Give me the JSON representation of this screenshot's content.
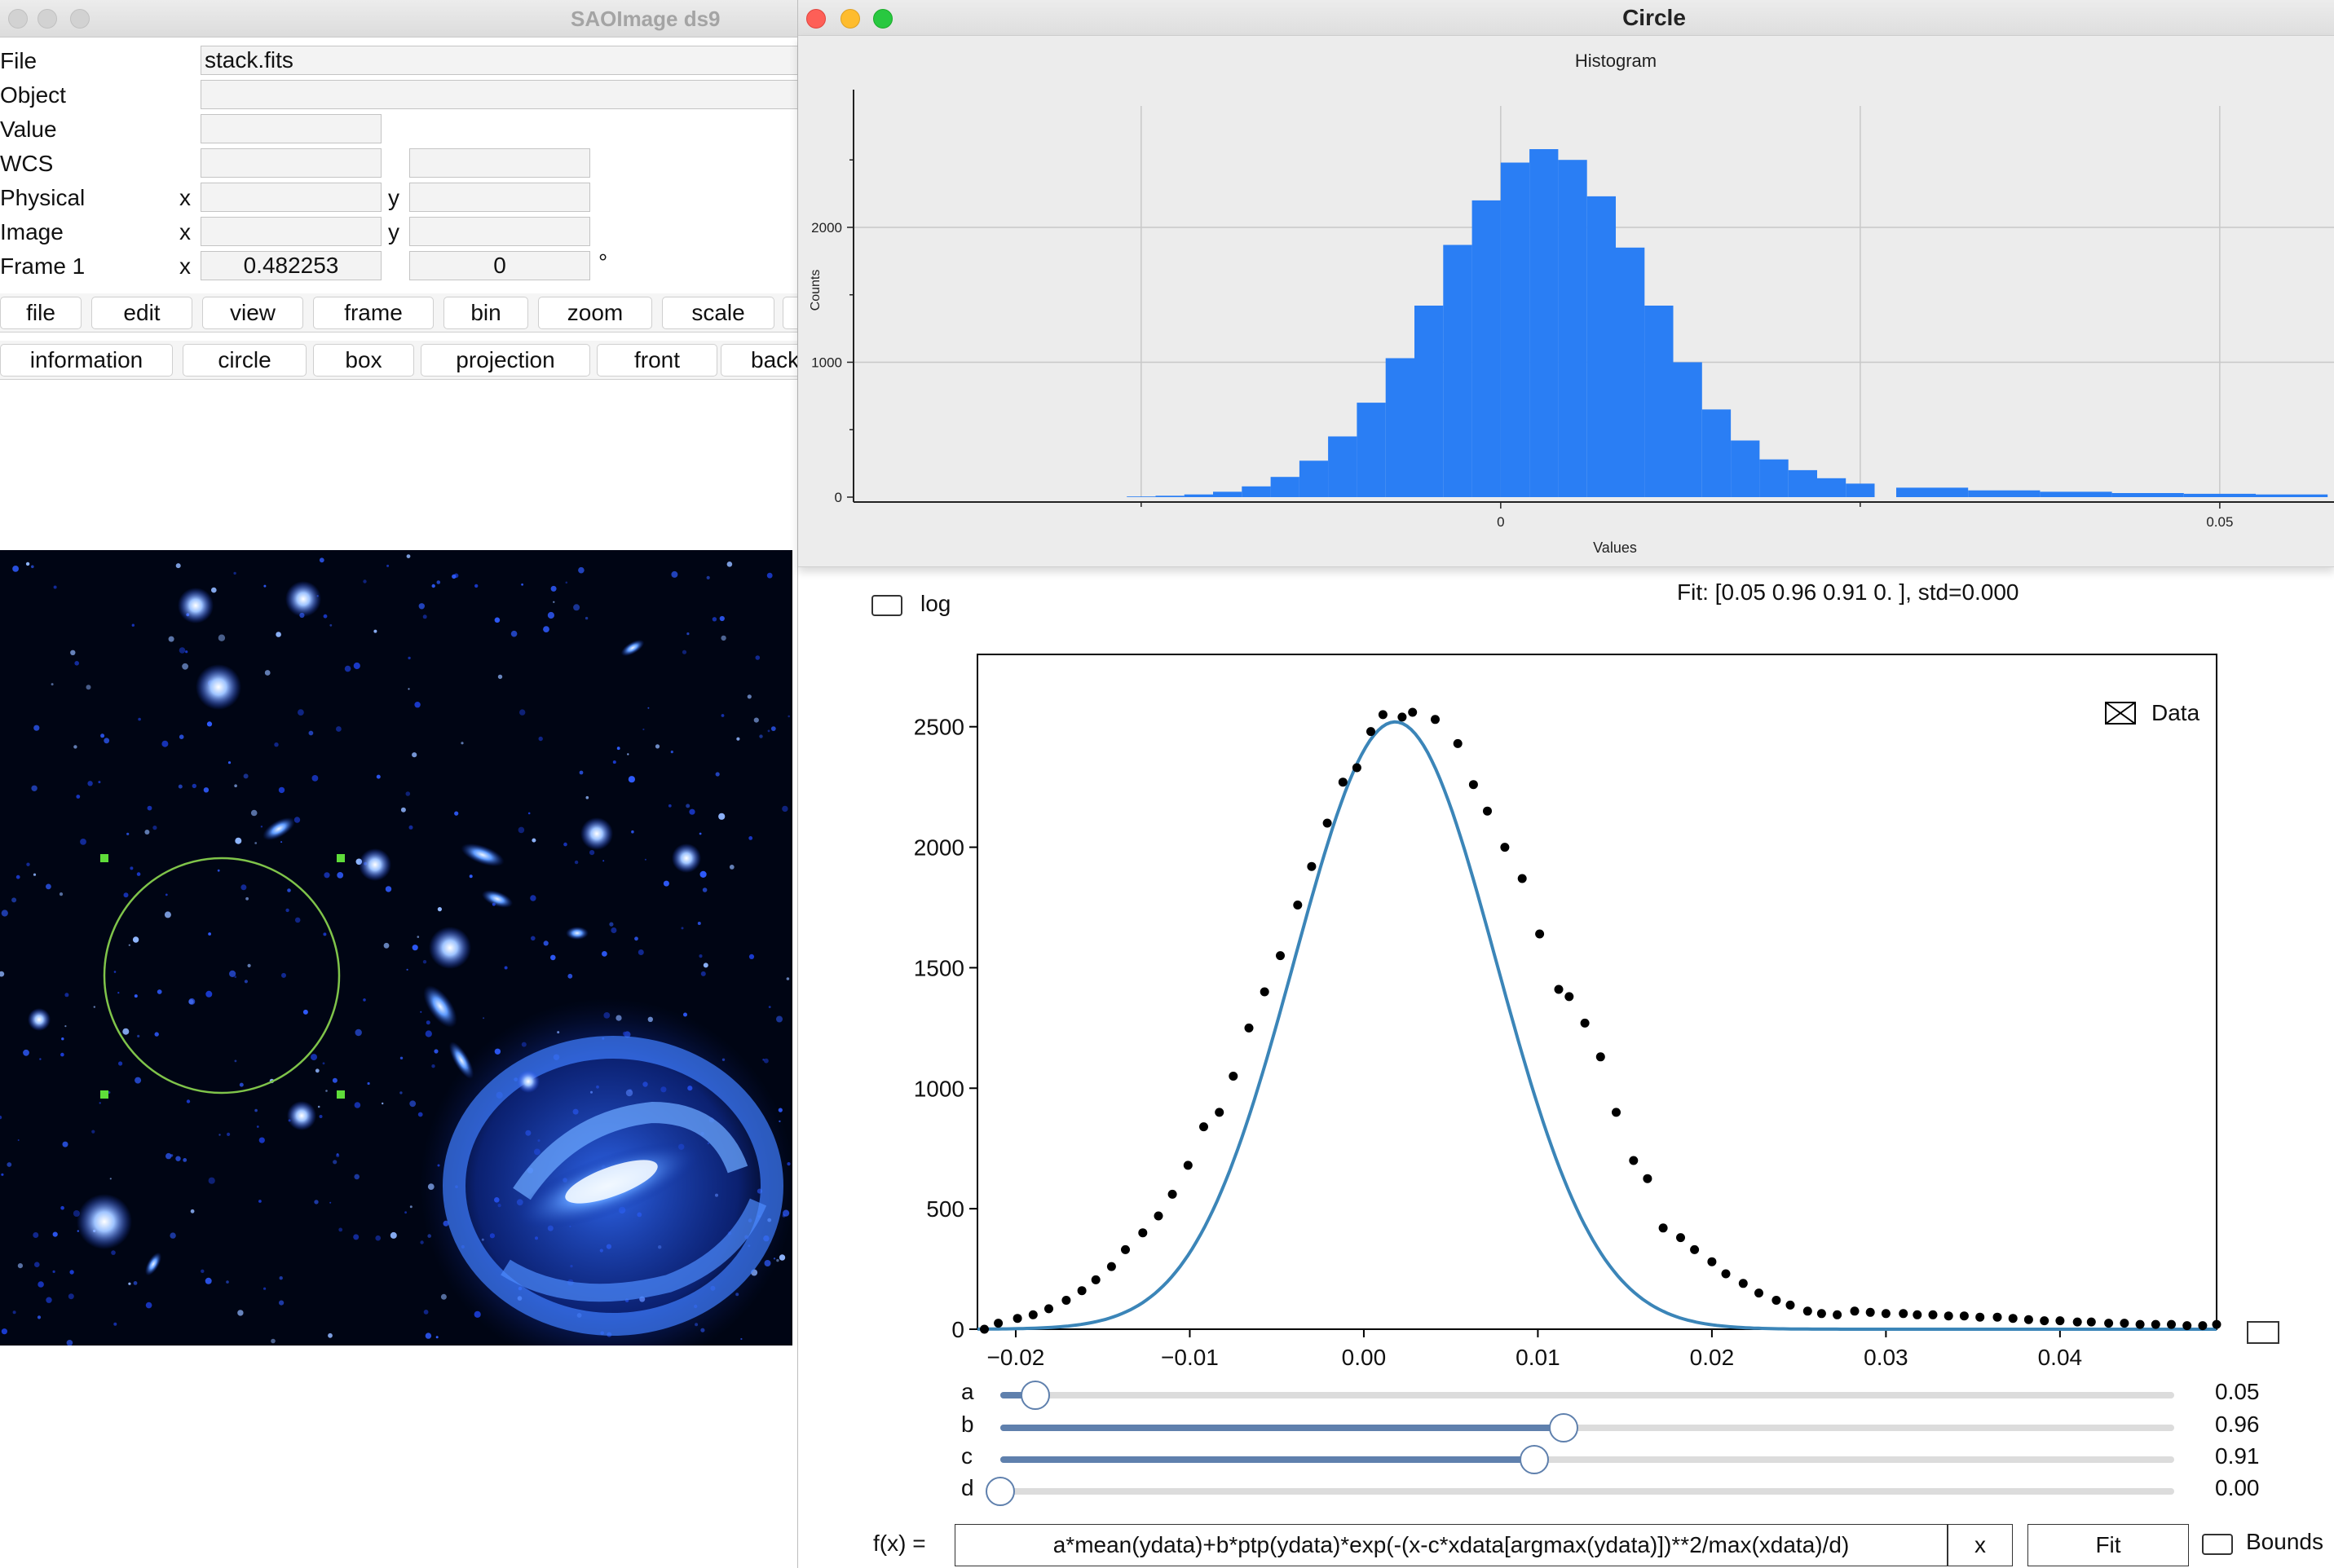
{
  "ds9": {
    "title": "SAOImage ds9",
    "info": {
      "file_label": "File",
      "file_value": "stack.fits",
      "object_label": "Object",
      "object_value": "",
      "value_label": "Value",
      "value_value": "",
      "wcs_label": "WCS",
      "physical_label": "Physical",
      "image_label": "Image",
      "frame_label": "Frame 1",
      "x_label": "x",
      "y_label": "y",
      "frame_x_value": "0.482253",
      "frame_angle_value": "0",
      "degree_symbol": "°"
    },
    "main_buttons": [
      "file",
      "edit",
      "view",
      "frame",
      "bin",
      "zoom",
      "scale"
    ],
    "sub_buttons": [
      "information",
      "circle",
      "box",
      "projection",
      "front",
      "back"
    ]
  },
  "circle_window": {
    "title": "Circle",
    "histogram": {
      "title": "Histogram",
      "xlabel": "Values",
      "ylabel": "Counts",
      "yticks": [
        "0",
        "1000",
        "2000"
      ],
      "xticks": [
        "0",
        "0.05"
      ],
      "bar_color": "#2a7ef4"
    },
    "log_label": "log",
    "fit_text": "Fit: [0.05 0.96 0.91 0.  ], std=0.000",
    "fit_plot": {
      "legend_label": "Data",
      "yticks": [
        "0",
        "500",
        "1000",
        "1500",
        "2000",
        "2500"
      ],
      "xticks": [
        "−0.02",
        "−0.01",
        "0.00",
        "0.01",
        "0.02",
        "0.03",
        "0.04"
      ],
      "curve_color": "#3b85b8",
      "point_color": "#000000"
    },
    "params": [
      {
        "name": "a",
        "value": "0.05",
        "level": 0.03
      },
      {
        "name": "b",
        "value": "0.96",
        "level": 0.48
      },
      {
        "name": "c",
        "value": "0.91",
        "level": 0.455
      },
      {
        "name": "d",
        "value": "0.00",
        "level": 0.0
      }
    ],
    "formula_label": "f(x) =",
    "formula_value": "a*mean(ydata)+b*ptp(ydata)*exp(-(x-c*xdata[argmax(ydata)])**2/max(xdata)/d)",
    "clear_label": "x",
    "fit_button": "Fit",
    "bounds_label": "Bounds"
  },
  "chart_data": [
    {
      "type": "bar",
      "title": "Histogram",
      "xlabel": "Values",
      "ylabel": "Counts",
      "x": [
        -0.025,
        -0.023,
        -0.021,
        -0.019,
        -0.017,
        -0.015,
        -0.013,
        -0.011,
        -0.009,
        -0.007,
        -0.005,
        -0.003,
        -0.001,
        0.001,
        0.003,
        0.005,
        0.007,
        0.009,
        0.011,
        0.013,
        0.015,
        0.017,
        0.019,
        0.021,
        0.023,
        0.025,
        0.03,
        0.035,
        0.04,
        0.045,
        0.05,
        0.055
      ],
      "values": [
        5,
        10,
        20,
        40,
        80,
        150,
        270,
        450,
        700,
        1030,
        1420,
        1870,
        2200,
        2480,
        2580,
        2500,
        2230,
        1850,
        1420,
        1000,
        650,
        420,
        280,
        200,
        140,
        100,
        70,
        50,
        40,
        30,
        25,
        20
      ],
      "xlim": [
        -0.045,
        0.058
      ],
      "ylim": [
        0,
        2900
      ],
      "grid": true
    },
    {
      "type": "scatter",
      "x": [
        -0.0218,
        -0.021,
        -0.0199,
        -0.019,
        -0.0181,
        -0.0171,
        -0.0162,
        -0.0154,
        -0.0145,
        -0.0137,
        -0.0127,
        -0.0118,
        -0.011,
        -0.0101,
        -0.0092,
        -0.0083,
        -0.0075,
        -0.0066,
        -0.0057,
        -0.0048,
        -0.0038,
        -0.003,
        -0.0021,
        -0.0012,
        -0.0004,
        0.0004,
        0.0011,
        0.0022,
        0.0028,
        0.0041,
        0.0054,
        0.0063,
        0.0071,
        0.0081,
        0.0091,
        0.0101,
        0.0112,
        0.0118,
        0.0127,
        0.0136,
        0.0145,
        0.0155,
        0.0163,
        0.0172,
        0.0182,
        0.019,
        0.02,
        0.0208,
        0.0218,
        0.0227,
        0.0237,
        0.0245,
        0.0255,
        0.0263,
        0.0272,
        0.0282,
        0.0291,
        0.03,
        0.031,
        0.0318,
        0.0327,
        0.0336,
        0.0345,
        0.0354,
        0.0364,
        0.0373,
        0.0382,
        0.0391,
        0.04,
        0.041,
        0.0418,
        0.0428,
        0.0437,
        0.0446,
        0.0455,
        0.0464,
        0.0473,
        0.0482,
        0.049
      ],
      "y": [
        0,
        25,
        45,
        60,
        85,
        120,
        160,
        205,
        260,
        330,
        400,
        470,
        560,
        680,
        840,
        900,
        1050,
        1250,
        1400,
        1550,
        1760,
        1920,
        2100,
        2270,
        2330,
        2480,
        2550,
        2540,
        2560,
        2530,
        2430,
        2260,
        2150,
        2000,
        1870,
        1640,
        1410,
        1380,
        1270,
        1130,
        900,
        700,
        625,
        420,
        380,
        330,
        280,
        230,
        190,
        150,
        120,
        100,
        75,
        65,
        60,
        75,
        70,
        65,
        65,
        60,
        60,
        55,
        55,
        50,
        50,
        45,
        40,
        35,
        35,
        30,
        30,
        25,
        25,
        20,
        20,
        20,
        15,
        15,
        20
      ],
      "series_label": "Data",
      "fit_curve": "gaussian, peak ~2520 at x~0.0018",
      "xlim": [
        -0.0222,
        0.049
      ],
      "ylim": [
        0,
        2800
      ]
    }
  ]
}
